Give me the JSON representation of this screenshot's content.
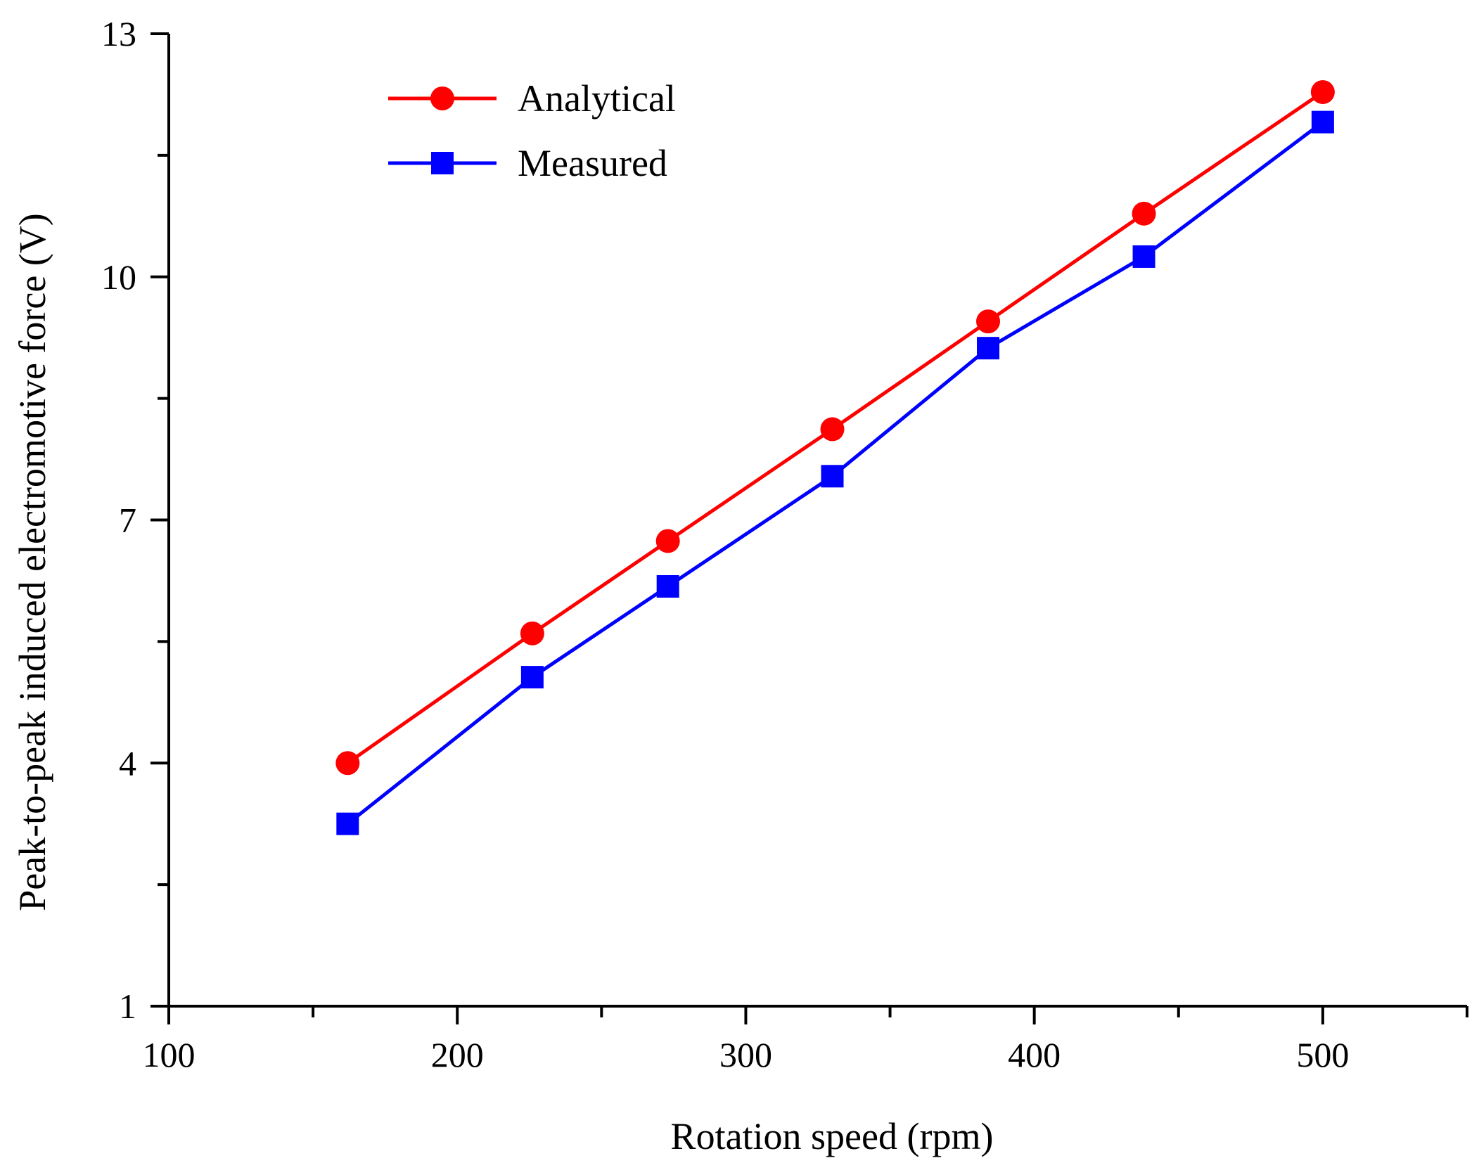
{
  "chart_data": {
    "type": "line",
    "title": "",
    "xlabel": "Rotation speed (rpm)",
    "ylabel": "Peak-to-peak induced electromotive force (V)",
    "xlim": [
      100,
      550
    ],
    "ylim": [
      1,
      13
    ],
    "xticks": [
      100,
      200,
      300,
      400,
      500
    ],
    "yticks": [
      1,
      4,
      7,
      10,
      13
    ],
    "legend_position": "top-left",
    "grid": false,
    "series": [
      {
        "name": "Analytical",
        "color": "#ff0000",
        "marker": "circle",
        "x": [
          162,
          226,
          273,
          330,
          384,
          438,
          500
        ],
        "y": [
          4.0,
          5.6,
          6.74,
          8.12,
          9.45,
          10.78,
          12.28
        ]
      },
      {
        "name": "Measured",
        "color": "#0000ff",
        "marker": "square",
        "x": [
          162,
          226,
          273,
          330,
          384,
          438,
          500
        ],
        "y": [
          3.25,
          5.06,
          6.18,
          7.54,
          9.12,
          10.25,
          11.91
        ]
      }
    ]
  }
}
